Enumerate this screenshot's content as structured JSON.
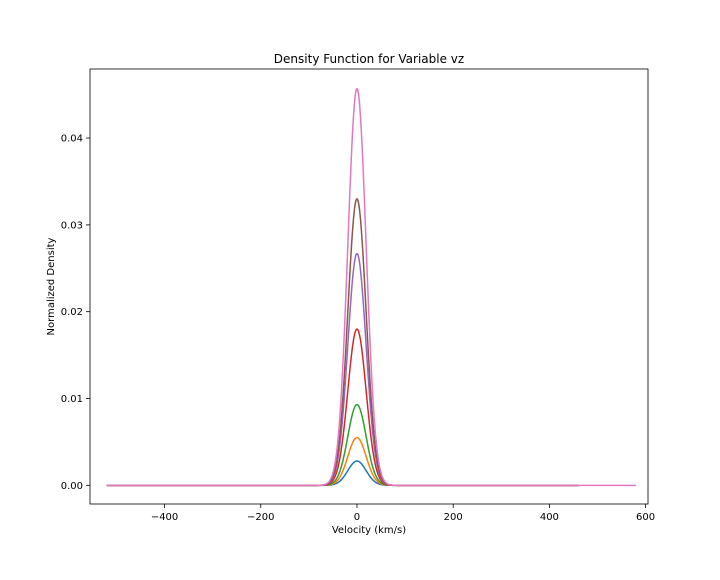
{
  "chart_data": {
    "type": "line",
    "title": "Density Function for Variable vz",
    "xlabel": "Velocity (km/s)",
    "ylabel": "Normalized Density",
    "xlim": [
      -555,
      605
    ],
    "ylim": [
      -0.00215,
      0.04795
    ],
    "xticks": [
      -400,
      -200,
      0,
      200,
      400,
      600
    ],
    "xtick_labels": [
      "−400",
      "−200",
      "0",
      "200",
      "400",
      "600"
    ],
    "yticks": [
      0.0,
      0.01,
      0.02,
      0.03,
      0.04
    ],
    "ytick_labels": [
      "0.00",
      "0.01",
      "0.02",
      "0.03",
      "0.04"
    ],
    "grid": false,
    "legend": "none",
    "series": [
      {
        "color": "#1f77b4",
        "peak_x": 0,
        "peak_y": 0.0028,
        "sigma": 19,
        "x_range": [
          -520,
          460
        ]
      },
      {
        "color": "#ff7f0e",
        "peak_x": 0,
        "peak_y": 0.0055,
        "sigma": 19,
        "x_range": [
          -520,
          460
        ]
      },
      {
        "color": "#2ca02c",
        "peak_x": 0,
        "peak_y": 0.0093,
        "sigma": 19,
        "x_range": [
          -520,
          460
        ]
      },
      {
        "color": "#d62728",
        "peak_x": 0,
        "peak_y": 0.018,
        "sigma": 19,
        "x_range": [
          -520,
          460
        ]
      },
      {
        "color": "#9467bd",
        "peak_x": 0,
        "peak_y": 0.0267,
        "sigma": 19,
        "x_range": [
          -520,
          460
        ]
      },
      {
        "color": "#8c564b",
        "peak_x": 0,
        "peak_y": 0.033,
        "sigma": 19,
        "x_range": [
          -520,
          460
        ]
      },
      {
        "color": "#e377c2",
        "peak_x": 0,
        "peak_y": 0.0457,
        "sigma": 19,
        "x_range": [
          -520,
          580
        ]
      }
    ]
  }
}
